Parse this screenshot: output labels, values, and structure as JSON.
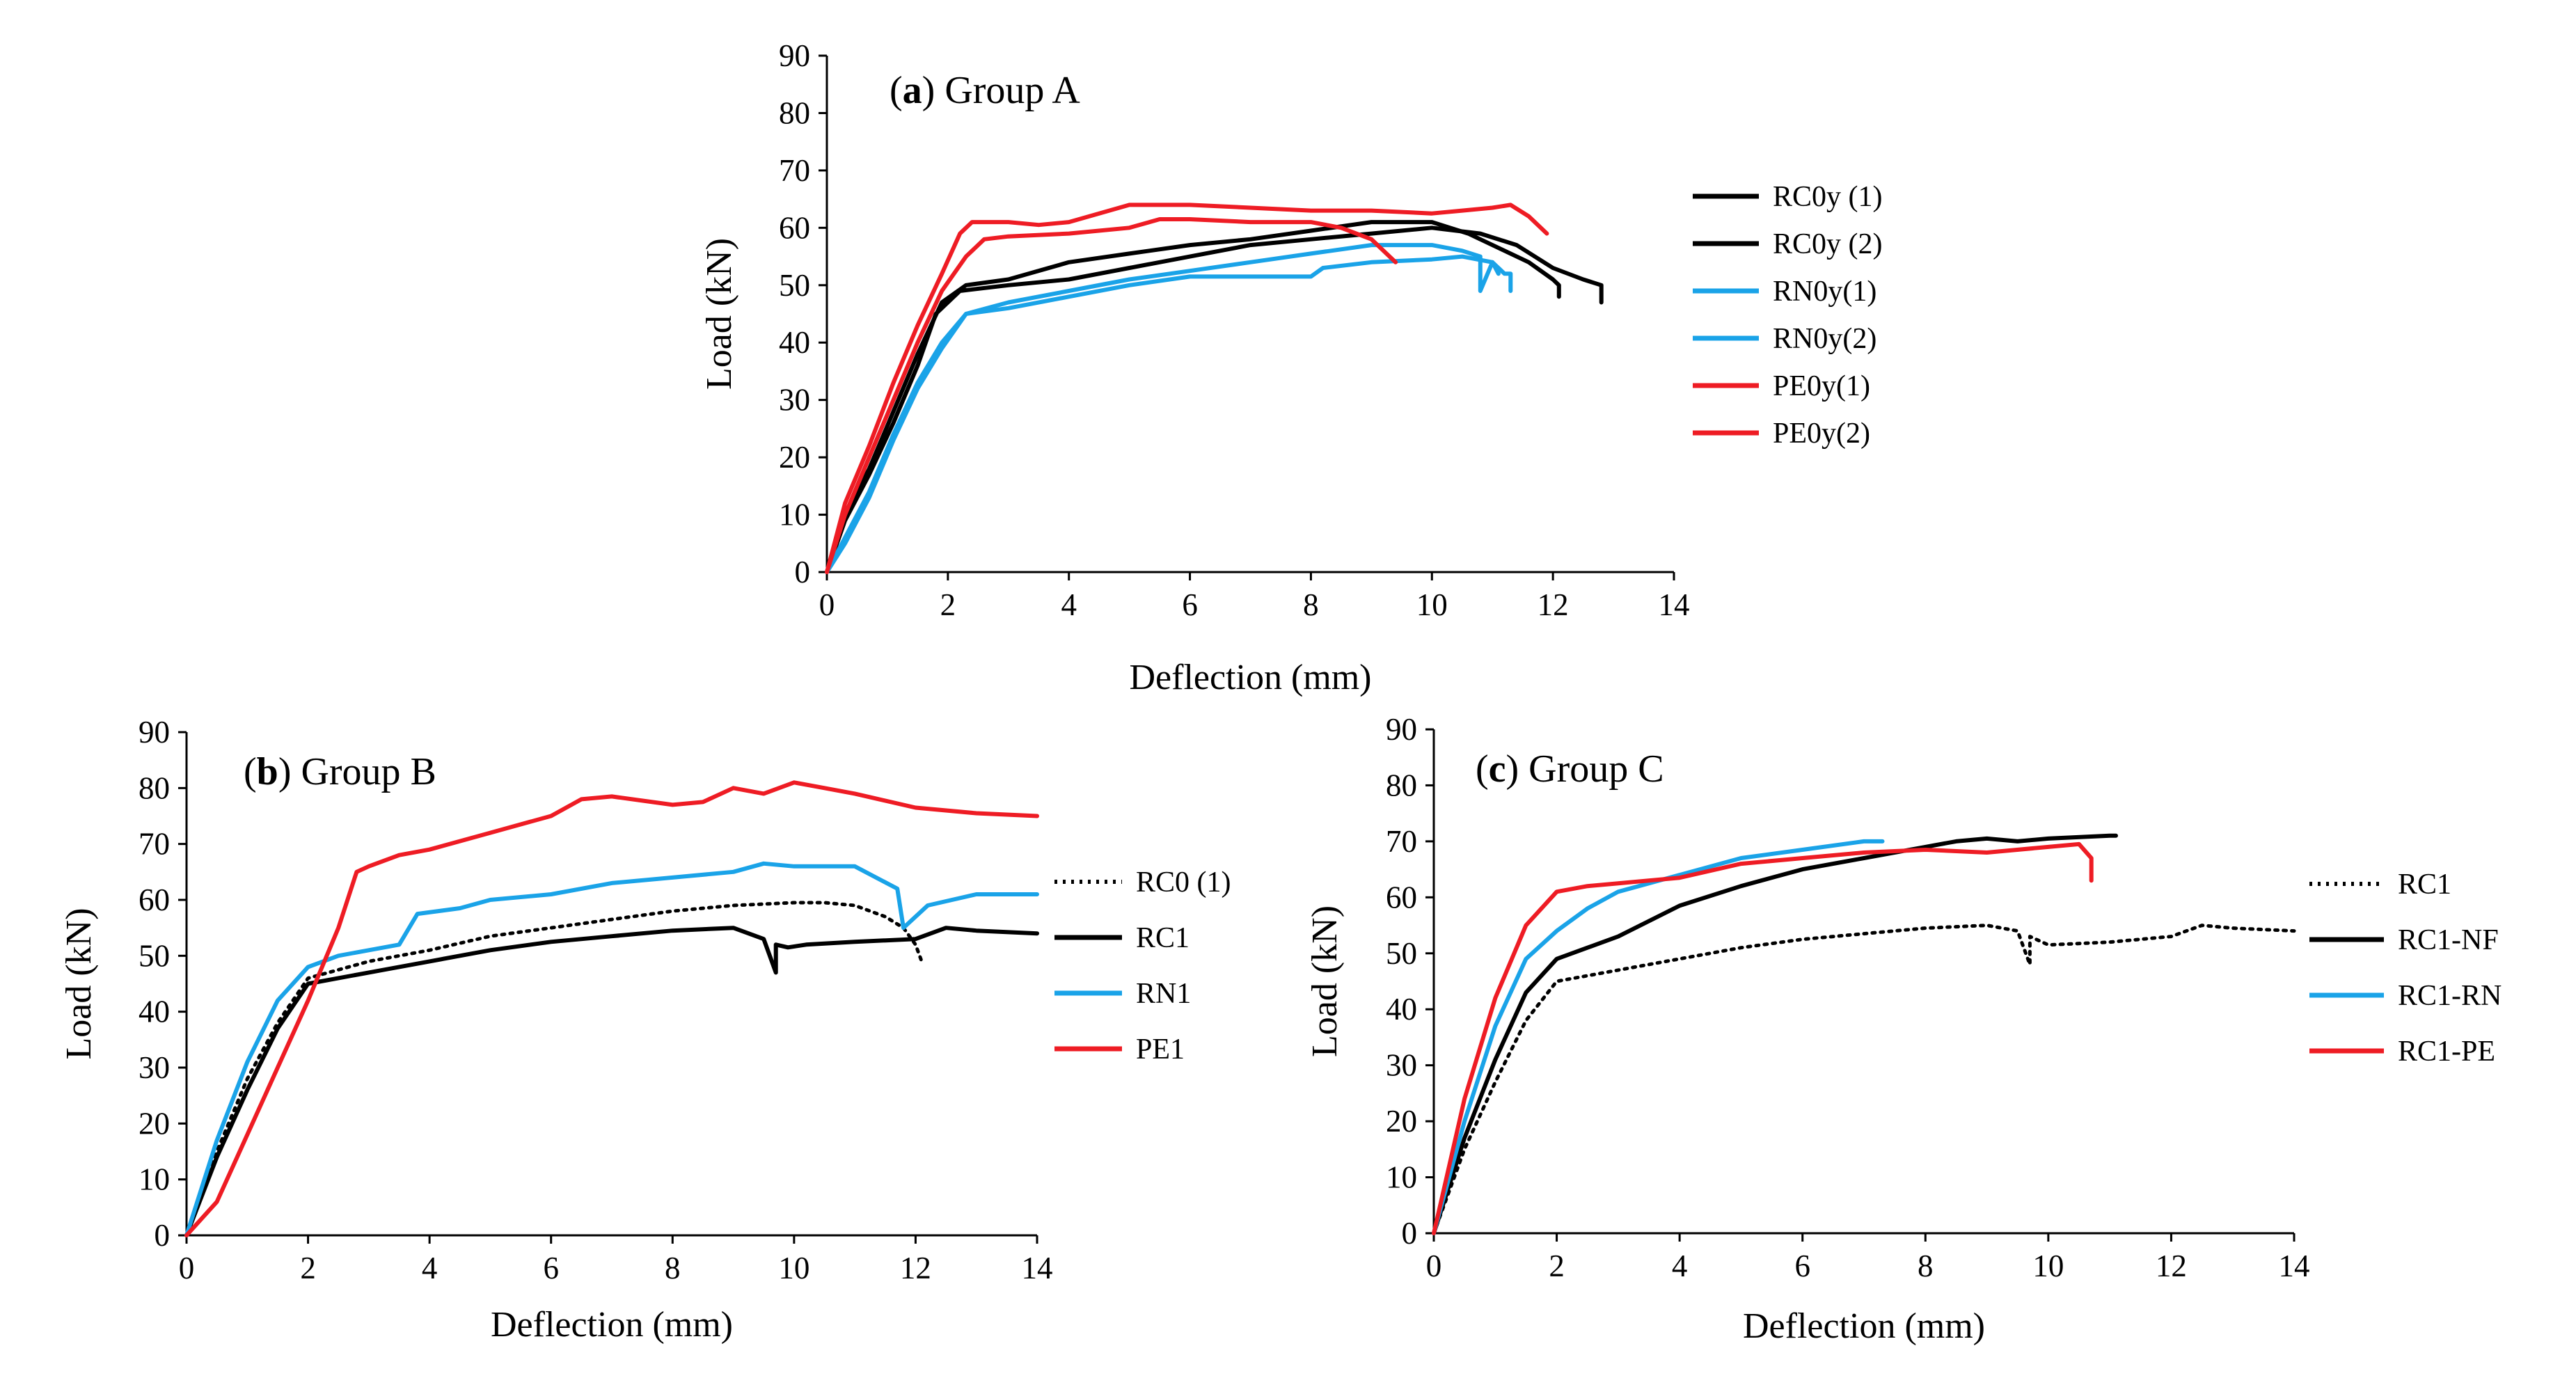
{
  "chart_data": [
    {
      "type": "line",
      "title_letter": "a",
      "title_rest": " Group A",
      "xlabel": "Deflection (mm)",
      "ylabel": "Load (kN)",
      "xlim": [
        0,
        14
      ],
      "ylim": [
        0,
        90
      ],
      "xticks": [
        "0",
        "2",
        "4",
        "6",
        "8",
        "10",
        "12",
        "14"
      ],
      "yticks": [
        "0",
        "10",
        "20",
        "30",
        "40",
        "50",
        "60",
        "70",
        "80",
        "90"
      ],
      "series": [
        {
          "name": "RC0y (1)",
          "color": "#000000",
          "dash": "solid",
          "x": [
            0,
            0.3,
            0.7,
            1.1,
            1.5,
            1.9,
            2.3,
            3,
            4,
            5,
            6,
            7,
            8,
            9,
            10,
            10.6,
            11,
            11.6,
            12,
            12.1,
            12.1
          ],
          "y": [
            0,
            10,
            18,
            28,
            38,
            47,
            50,
            51,
            54,
            55.5,
            57,
            58,
            59.5,
            61,
            61,
            59,
            57,
            54,
            51,
            50,
            48
          ]
        },
        {
          "name": "RC0y (2)",
          "color": "#000000",
          "dash": "solid",
          "x": [
            0,
            0.3,
            0.7,
            1.1,
            1.5,
            1.8,
            2.2,
            3,
            4,
            5,
            6,
            7,
            8,
            9,
            10,
            10.8,
            11.4,
            12,
            12.5,
            12.8,
            12.8
          ],
          "y": [
            0,
            9,
            17,
            26,
            36,
            45,
            49,
            50,
            51,
            53,
            55,
            57,
            58,
            59,
            60,
            59,
            57,
            53,
            51,
            50,
            47
          ]
        },
        {
          "name": "RN0y(1)",
          "color": "#1aa3e8",
          "dash": "solid",
          "x": [
            0,
            0.3,
            0.7,
            1.1,
            1.5,
            1.9,
            2.3,
            3,
            4,
            5,
            6,
            7,
            8,
            9,
            10,
            10.5,
            10.8,
            10.8,
            11,
            11.1
          ],
          "y": [
            0,
            6,
            14,
            24,
            33,
            40,
            45,
            47,
            49,
            51,
            52.5,
            54,
            55.5,
            57,
            57,
            56,
            55,
            49,
            54,
            52
          ]
        },
        {
          "name": "RN0y(2)",
          "color": "#1aa3e8",
          "dash": "solid",
          "x": [
            0,
            0.3,
            0.7,
            1.1,
            1.5,
            1.9,
            2.3,
            3,
            4,
            5,
            6,
            7,
            8,
            8.2,
            9,
            10,
            10.5,
            11,
            11.2,
            11.3,
            11.3
          ],
          "y": [
            0,
            5,
            13,
            23,
            32,
            39,
            45,
            46,
            48,
            50,
            51.5,
            51.5,
            51.5,
            53,
            54,
            54.5,
            55,
            54,
            52,
            52,
            49
          ]
        },
        {
          "name": "PE0y(1)",
          "color": "#ee1c24",
          "dash": "solid",
          "x": [
            0,
            0.3,
            0.7,
            1.1,
            1.5,
            1.9,
            2.2,
            2.4,
            3,
            3.5,
            4,
            4.5,
            5,
            6,
            7,
            8,
            9,
            10,
            10.5,
            11,
            11.3,
            11.6,
            11.9
          ],
          "y": [
            0,
            12,
            22,
            33,
            43,
            52,
            59,
            61,
            61,
            60.5,
            61,
            62.5,
            64,
            64,
            63.5,
            63,
            63,
            62.5,
            63,
            63.5,
            64,
            62,
            59
          ]
        },
        {
          "name": "PE0y(2)",
          "color": "#ee1c24",
          "dash": "solid",
          "x": [
            0,
            0.3,
            0.7,
            1.1,
            1.5,
            1.9,
            2.3,
            2.6,
            3,
            4,
            5,
            5.5,
            6,
            7,
            8,
            8.5,
            9,
            9.2,
            9.4
          ],
          "y": [
            0,
            10,
            20,
            30,
            40,
            49,
            55,
            58,
            58.5,
            59,
            60,
            61.5,
            61.5,
            61,
            61,
            60,
            58,
            56,
            54
          ]
        }
      ]
    },
    {
      "type": "line",
      "title_letter": "b",
      "title_rest": " Group B",
      "xlabel": "Deflection (mm)",
      "ylabel": "Load (kN)",
      "xlim": [
        0,
        14
      ],
      "ylim": [
        0,
        90
      ],
      "xticks": [
        "0",
        "2",
        "4",
        "6",
        "8",
        "10",
        "12",
        "14"
      ],
      "yticks": [
        "0",
        "10",
        "20",
        "30",
        "40",
        "50",
        "60",
        "70",
        "80",
        "90"
      ],
      "series": [
        {
          "name": "RC0 (1)",
          "color": "#000000",
          "dash": "dotted",
          "x": [
            0,
            0.5,
            1,
            1.5,
            2,
            3,
            4,
            5,
            6,
            7,
            8,
            9,
            10,
            10.5,
            11,
            11.5,
            11.8,
            12,
            12.1
          ],
          "y": [
            0,
            15,
            28,
            38,
            46,
            49,
            51,
            53.5,
            55,
            56.5,
            58,
            59,
            59.5,
            59.5,
            59,
            57,
            55,
            52,
            49
          ]
        },
        {
          "name": "RC1",
          "color": "#000000",
          "dash": "solid",
          "x": [
            0,
            0.5,
            1,
            1.5,
            2,
            3,
            4,
            5,
            6,
            7,
            8,
            9,
            9.5,
            9.7,
            9.7,
            9.9,
            10.2,
            11,
            12,
            12.5,
            13,
            14
          ],
          "y": [
            0,
            14,
            26,
            37,
            45,
            47,
            49,
            51,
            52.5,
            53.5,
            54.5,
            55,
            53,
            47,
            52,
            51.5,
            52,
            52.5,
            53,
            55,
            54.5,
            54
          ]
        },
        {
          "name": "RN1",
          "color": "#1aa3e8",
          "dash": "solid",
          "x": [
            0,
            0.5,
            1,
            1.5,
            2,
            2.5,
            3,
            3.5,
            3.8,
            4.5,
            5,
            6,
            7,
            8,
            9,
            9.5,
            10,
            11,
            11.7,
            11.8,
            12.2,
            13,
            14
          ],
          "y": [
            0,
            17,
            31,
            42,
            48,
            50,
            51,
            52,
            57.5,
            58.5,
            60,
            61,
            63,
            64,
            65,
            66.5,
            66,
            66,
            62,
            55,
            59,
            61,
            61
          ]
        },
        {
          "name": "PE1",
          "color": "#ee1c24",
          "dash": "solid",
          "x": [
            0,
            0.5,
            1,
            1.5,
            2,
            2.5,
            2.8,
            3,
            3.5,
            4,
            5,
            6,
            6.5,
            7,
            8,
            8.5,
            9,
            9.5,
            10,
            10.5,
            11,
            12,
            13,
            14
          ],
          "y": [
            0,
            6,
            18,
            30,
            42,
            55,
            65,
            66,
            68,
            69,
            72,
            75,
            78,
            78.5,
            77,
            77.5,
            80,
            79,
            81,
            80,
            79,
            76.5,
            75.5,
            75
          ]
        }
      ]
    },
    {
      "type": "line",
      "title_letter": "c",
      "title_rest": " Group C",
      "xlabel": "Deflection (mm)",
      "ylabel": "Load (kN)",
      "xlim": [
        0,
        14
      ],
      "ylim": [
        0,
        90
      ],
      "xticks": [
        "0",
        "2",
        "4",
        "6",
        "8",
        "10",
        "12",
        "14"
      ],
      "yticks": [
        "0",
        "10",
        "20",
        "30",
        "40",
        "50",
        "60",
        "70",
        "80",
        "90"
      ],
      "series": [
        {
          "name": "RC1",
          "color": "#000000",
          "dash": "dotted",
          "x": [
            0,
            0.5,
            1,
            1.5,
            2,
            3,
            4,
            5,
            6,
            7,
            8,
            9,
            9.5,
            9.7,
            9.7,
            10,
            11,
            12,
            12.5,
            13,
            14
          ],
          "y": [
            0,
            15,
            27,
            38,
            45,
            47,
            49,
            51,
            52.5,
            53.5,
            54.5,
            55,
            54,
            48,
            53,
            51.5,
            52,
            53,
            55,
            54.5,
            54
          ]
        },
        {
          "name": "RC1-NF",
          "color": "#000000",
          "dash": "solid",
          "x": [
            0,
            0.5,
            1,
            1.5,
            2,
            2.5,
            3,
            4,
            5,
            6,
            7,
            8,
            8.5,
            9,
            9.5,
            10,
            11,
            11.1
          ],
          "y": [
            0,
            17,
            31,
            43,
            49,
            51,
            53,
            58.5,
            62,
            65,
            67,
            69,
            70,
            70.5,
            70,
            70.5,
            71,
            71
          ]
        },
        {
          "name": "RC1-RN",
          "color": "#1aa3e8",
          "dash": "solid",
          "x": [
            0,
            0.5,
            1,
            1.5,
            2,
            2.5,
            3,
            4,
            5,
            6,
            7,
            7.3
          ],
          "y": [
            0,
            20,
            37,
            49,
            54,
            58,
            61,
            64,
            67,
            68.5,
            70,
            70
          ]
        },
        {
          "name": "RC1-PE",
          "color": "#ee1c24",
          "dash": "solid",
          "x": [
            0,
            0.5,
            1,
            1.5,
            2,
            2.5,
            3,
            4,
            5,
            6,
            7,
            8,
            9,
            10,
            10.5,
            10.7,
            10.7
          ],
          "y": [
            0,
            24,
            42,
            55,
            61,
            62,
            62.5,
            63.5,
            66,
            67,
            68,
            68.5,
            68,
            69,
            69.5,
            67,
            63
          ]
        }
      ]
    }
  ]
}
